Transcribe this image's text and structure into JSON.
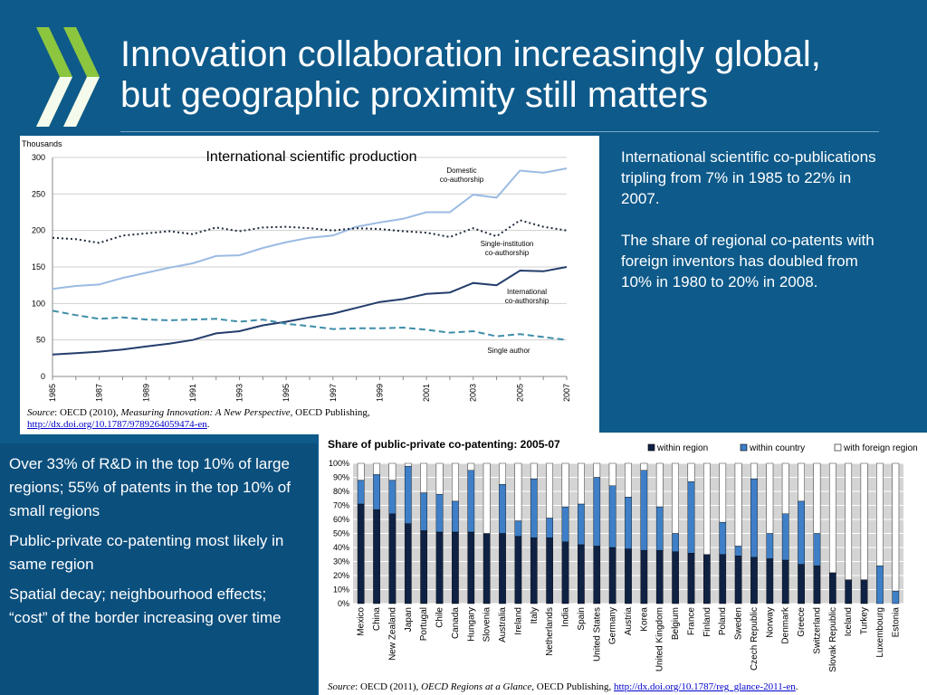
{
  "slide": {
    "title_line1": "Innovation collaboration increasingly global,",
    "title_line2": "but geographic proximity still matters",
    "logo_icon": "oecd-chevron-logo-icon",
    "colors": {
      "background": "#0e5a8a",
      "logo_green": "#8cc63f"
    }
  },
  "side_text": {
    "para1": "International scientific co-publications tripling from 7% in 1985 to 22% in 2007.",
    "para2": "The share of regional co-patents with foreign inventors has doubled from 10% in 1980 to 20% in 2008."
  },
  "bottom_text": {
    "para1": "Over 33% of R&D in the top 10% of large regions; 55% of patents in the top 10% of small regions",
    "para2": "Public-private co-patenting most likely in same region",
    "para3": "Spatial decay; neighbourhood effects;  “cost” of the border increasing over time"
  },
  "source1": {
    "label": "Source",
    "text_pre": ": OECD (2010), ",
    "title": "Measuring Innovation: A New Perspective",
    "text_post": ", OECD Publishing,",
    "url": "http://dx.doi.org/10.1787/9789264059474-en",
    "period": "."
  },
  "source2": {
    "label": "Source",
    "text_pre": ": OECD (2011), ",
    "title": "OECD Regions at a Glance",
    "text_post": ", OECD Publishing, ",
    "url": "http://dx.doi.org/10.1787/reg_glance-2011-en",
    "period": "."
  },
  "chart_data": [
    {
      "type": "line",
      "title": "International scientific production",
      "ylabel": "Thousands",
      "ylim": [
        0,
        300
      ],
      "yticks": [
        0,
        50,
        100,
        150,
        200,
        250,
        300
      ],
      "xticks": [
        "1985",
        "1987",
        "1989",
        "1991",
        "1993",
        "1995",
        "1997",
        "1999",
        "2001",
        "2003",
        "2005",
        "2007"
      ],
      "x": [
        1985,
        1986,
        1987,
        1988,
        1989,
        1990,
        1991,
        1992,
        1993,
        1994,
        1995,
        1996,
        1997,
        1998,
        1999,
        2000,
        2001,
        2002,
        2003,
        2004,
        2005,
        2006,
        2007
      ],
      "grid": "horizontal",
      "series": [
        {
          "name": "Domestic co-authorship",
          "label_lines": [
            "Domestic",
            "co-authorship"
          ],
          "style": "solid",
          "color": "#9bbbe3",
          "values": [
            120,
            124,
            126,
            135,
            142,
            149,
            155,
            165,
            166,
            176,
            184,
            190,
            193,
            205,
            211,
            216,
            225,
            225,
            249,
            245,
            282,
            279,
            285
          ]
        },
        {
          "name": "Single-institution co-authorship",
          "label_lines": [
            "Single-institution",
            "co-authorship"
          ],
          "style": "dotted",
          "color": "#1f2a3c",
          "values": [
            190,
            188,
            183,
            193,
            196,
            199,
            195,
            204,
            199,
            204,
            205,
            203,
            200,
            203,
            202,
            199,
            197,
            191,
            203,
            192,
            214,
            205,
            200
          ]
        },
        {
          "name": "International co-authorship",
          "label_lines": [
            "International",
            "co-authorship"
          ],
          "style": "solid",
          "color": "#233d6b",
          "values": [
            30,
            32,
            34,
            37,
            41,
            45,
            50,
            59,
            62,
            70,
            75,
            81,
            86,
            94,
            102,
            106,
            113,
            115,
            128,
            125,
            145,
            144,
            150
          ]
        },
        {
          "name": "Single author",
          "label_lines": [
            "Single author"
          ],
          "style": "dashed",
          "color": "#3f8ea9",
          "values": [
            90,
            84,
            79,
            81,
            78,
            77,
            78,
            79,
            75,
            78,
            72,
            69,
            65,
            66,
            66,
            67,
            64,
            60,
            62,
            55,
            58,
            54,
            50
          ]
        }
      ]
    },
    {
      "type": "bar",
      "stacked": true,
      "title": "Share of public-private co-patenting: 2005-07",
      "ylim": [
        0,
        100
      ],
      "yticks": [
        "0%",
        "10%",
        "20%",
        "30%",
        "40%",
        "50%",
        "60%",
        "70%",
        "80%",
        "90%",
        "100%"
      ],
      "legend": "top-right",
      "categories": [
        "Mexico",
        "China",
        "New Zealand",
        "Japan",
        "Portugal",
        "Chile",
        "Canada",
        "Hungary",
        "Slovenia",
        "Australia",
        "Ireland",
        "Italy",
        "Netherlands",
        "India",
        "Spain",
        "United States",
        "Germany",
        "Austria",
        "Korea",
        "United Kingdom",
        "Belgium",
        "France",
        "Finland",
        "Poland",
        "Sweden",
        "Czech Republic",
        "Norway",
        "Denmark",
        "Greece",
        "Switzerland",
        "Slovak Republic",
        "Iceland",
        "Turkey",
        "Luxembourg",
        "Estonia"
      ],
      "series": [
        {
          "name": "within region",
          "color": "#0f2244",
          "values": [
            71,
            67,
            64,
            57,
            52,
            51,
            51,
            51,
            50,
            50,
            48,
            47,
            47,
            44,
            42,
            41,
            40,
            39,
            38,
            38,
            37,
            36,
            35,
            35,
            34,
            33,
            32,
            31,
            28,
            27,
            22,
            17,
            17,
            0,
            0
          ]
        },
        {
          "name": "within country",
          "color": "#3e7fc7",
          "values": [
            17,
            25,
            24,
            41,
            27,
            27,
            22,
            44,
            0,
            35,
            11,
            42,
            14,
            25,
            29,
            49,
            44,
            37,
            57,
            31,
            13,
            51,
            0,
            23,
            7,
            56,
            18,
            33,
            45,
            23,
            0,
            0,
            0,
            27,
            9
          ]
        },
        {
          "name": "with foreign region",
          "color": "#ffffff",
          "values": [
            12,
            8,
            12,
            2,
            21,
            22,
            27,
            5,
            50,
            15,
            41,
            11,
            39,
            31,
            29,
            10,
            16,
            24,
            5,
            31,
            50,
            13,
            65,
            42,
            59,
            11,
            50,
            36,
            27,
            50,
            78,
            83,
            83,
            73,
            91
          ]
        }
      ]
    }
  ]
}
